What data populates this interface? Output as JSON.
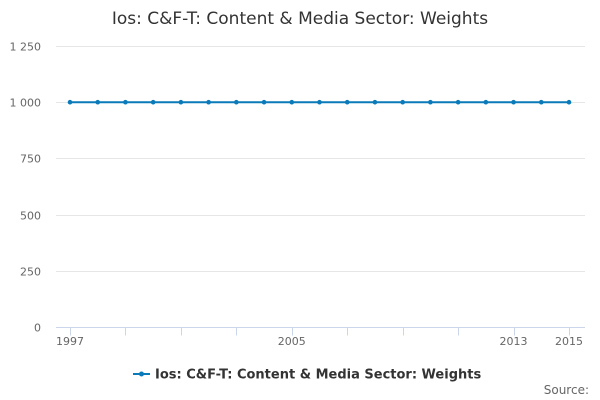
{
  "chart_data": {
    "type": "line",
    "title": "Ios: C&F-T: Content & Media Sector: Weights",
    "x": [
      1997,
      1998,
      1999,
      2000,
      2001,
      2002,
      2003,
      2004,
      2005,
      2006,
      2007,
      2008,
      2009,
      2010,
      2011,
      2012,
      2013,
      2014,
      2015
    ],
    "series": [
      {
        "name": "Ios: C&F-T: Content & Media Sector: Weights",
        "values": [
          1000,
          1000,
          1000,
          1000,
          1000,
          1000,
          1000,
          1000,
          1000,
          1000,
          1000,
          1000,
          1000,
          1000,
          1000,
          1000,
          1000,
          1000,
          1000
        ],
        "color": "#0a7ab8"
      }
    ],
    "xlim": [
      1997,
      2015
    ],
    "ylim": [
      0,
      1250
    ],
    "y_ticks": [
      0,
      250,
      500,
      750,
      1000,
      1250
    ],
    "y_tick_labels": [
      "0",
      "250",
      "500",
      "750",
      "1 000",
      "1 250"
    ],
    "x_tick_labels_shown": [
      1997,
      2005,
      2013,
      2015
    ],
    "grid": "horizontal",
    "legend": "bottom-center",
    "source_label": "Source:"
  }
}
